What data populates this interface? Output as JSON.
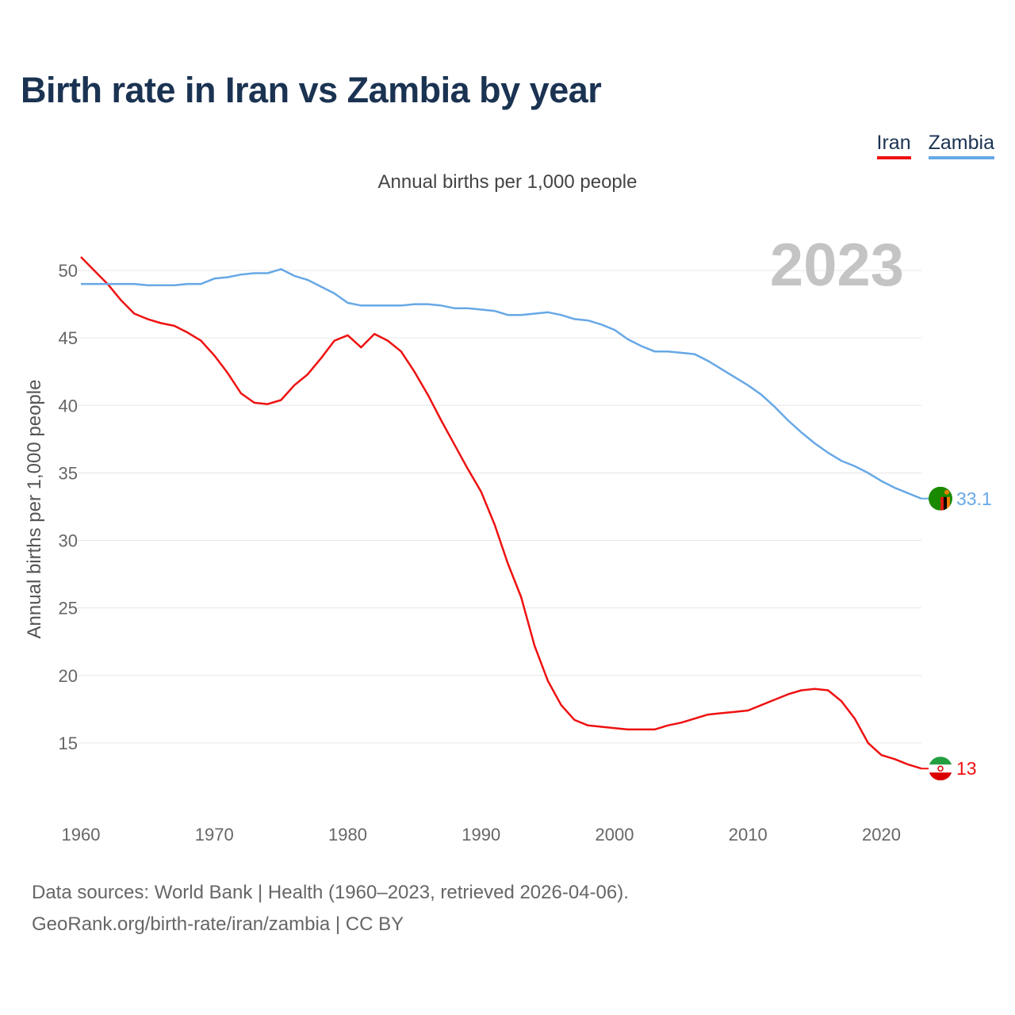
{
  "title": "Birth rate in Iran vs Zambia by year",
  "subtitle": "Annual births per 1,000 people",
  "legend": [
    {
      "name": "Iran",
      "color": "#ee1111"
    },
    {
      "name": "Zambia",
      "color": "#67a8e6"
    }
  ],
  "footer": {
    "line1": "Data sources: World Bank | Health (1960–2023, retrieved 2026-04-06).",
    "line2": "GeoRank.org/birth-rate/iran/zambia | CC BY"
  },
  "chart_data": {
    "type": "line",
    "title": "Birth rate in Iran vs Zambia by year",
    "ylabel": "Annual births per 1,000 people",
    "xlabel": "",
    "year_watermark": "2023",
    "xlim": [
      1960,
      2023
    ],
    "ylim": [
      10,
      53
    ],
    "x_ticks": [
      1960,
      1970,
      1980,
      1990,
      2000,
      2010,
      2020
    ],
    "y_ticks": [
      15,
      20,
      25,
      30,
      35,
      40,
      45,
      50
    ],
    "grid": true,
    "legend_position": "top-right",
    "x": [
      1960,
      1961,
      1962,
      1963,
      1964,
      1965,
      1966,
      1967,
      1968,
      1969,
      1970,
      1971,
      1972,
      1973,
      1974,
      1975,
      1976,
      1977,
      1978,
      1979,
      1980,
      1981,
      1982,
      1983,
      1984,
      1985,
      1986,
      1987,
      1988,
      1989,
      1990,
      1991,
      1992,
      1993,
      1994,
      1995,
      1996,
      1997,
      1998,
      1999,
      2000,
      2001,
      2002,
      2003,
      2004,
      2005,
      2006,
      2007,
      2008,
      2009,
      2010,
      2011,
      2012,
      2013,
      2014,
      2015,
      2016,
      2017,
      2018,
      2019,
      2020,
      2021,
      2022,
      2023
    ],
    "series": [
      {
        "name": "Iran",
        "color": "#ee1111",
        "end_label": "13",
        "values": [
          51.0,
          50.0,
          49.0,
          47.8,
          46.8,
          46.4,
          46.1,
          45.9,
          45.4,
          44.8,
          43.7,
          42.4,
          40.9,
          40.2,
          40.1,
          40.4,
          41.5,
          42.3,
          43.5,
          44.8,
          45.2,
          44.3,
          45.3,
          44.8,
          44.0,
          42.5,
          40.8,
          38.9,
          37.1,
          35.3,
          33.6,
          31.2,
          28.3,
          25.8,
          22.2,
          19.6,
          17.8,
          16.7,
          16.3,
          16.2,
          16.1,
          16.0,
          16.0,
          16.0,
          16.3,
          16.5,
          16.8,
          17.1,
          17.2,
          17.3,
          17.4,
          17.8,
          18.2,
          18.6,
          18.9,
          19.0,
          18.9,
          18.1,
          16.8,
          15.0,
          14.1,
          13.8,
          13.4,
          13.1
        ]
      },
      {
        "name": "Zambia",
        "color": "#67a8e6",
        "end_label": "33.1",
        "values": [
          49.0,
          49.0,
          49.0,
          49.0,
          49.0,
          48.9,
          48.9,
          48.9,
          49.0,
          49.0,
          49.4,
          49.5,
          49.7,
          49.8,
          49.8,
          50.1,
          49.6,
          49.3,
          48.8,
          48.3,
          47.6,
          47.4,
          47.4,
          47.4,
          47.4,
          47.5,
          47.5,
          47.4,
          47.2,
          47.2,
          47.1,
          47.0,
          46.7,
          46.7,
          46.8,
          46.9,
          46.7,
          46.4,
          46.3,
          46.0,
          45.6,
          44.9,
          44.4,
          44.0,
          44.0,
          43.9,
          43.8,
          43.3,
          42.7,
          42.1,
          41.5,
          40.8,
          39.9,
          38.9,
          38.0,
          37.2,
          36.5,
          35.9,
          35.5,
          35.0,
          34.4,
          33.9,
          33.5,
          33.1
        ]
      }
    ]
  }
}
